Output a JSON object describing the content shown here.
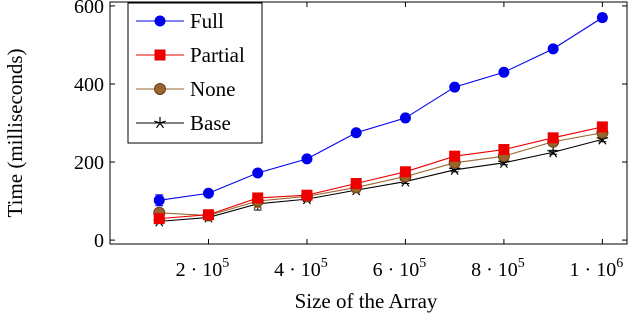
{
  "chart_data": {
    "type": "line",
    "xlabel": "Size of the Array",
    "ylabel": "Time (milliseconds)",
    "xlim": [
      0,
      1050000
    ],
    "ylim": [
      -10,
      610
    ],
    "x_ticks": [
      {
        "value": 200000,
        "base": "2 · 10",
        "exp": "5"
      },
      {
        "value": 400000,
        "base": "4 · 10",
        "exp": "5"
      },
      {
        "value": 600000,
        "base": "6 · 10",
        "exp": "5"
      },
      {
        "value": 800000,
        "base": "8 · 10",
        "exp": "5"
      },
      {
        "value": 1000000,
        "base": "1 · 10",
        "exp": "6"
      }
    ],
    "y_ticks": [
      {
        "value": 0,
        "label": "0"
      },
      {
        "value": 200,
        "label": "200"
      },
      {
        "value": 400,
        "label": "400"
      },
      {
        "value": 600,
        "label": "600"
      }
    ],
    "legend_position": "top-left",
    "x": [
      100000,
      200000,
      300000,
      400000,
      500000,
      600000,
      700000,
      800000,
      900000,
      1000000
    ],
    "series": [
      {
        "name": "Full",
        "color": "#0000ee",
        "marker": "circle",
        "values": [
          102,
          120,
          172,
          208,
          275,
          313,
          392,
          430,
          490,
          570
        ],
        "errors": [
          14,
          7,
          8,
          6,
          6,
          6,
          6,
          6,
          8,
          10
        ]
      },
      {
        "name": "Partial",
        "color": "#ee0000",
        "marker": "square",
        "values": [
          55,
          65,
          108,
          115,
          145,
          175,
          215,
          232,
          262,
          290
        ],
        "errors": [
          6,
          4,
          10,
          5,
          5,
          5,
          5,
          5,
          5,
          6
        ]
      },
      {
        "name": "None",
        "color": "#99652b",
        "marker": "circle-filled-outline",
        "values": [
          70,
          63,
          100,
          112,
          135,
          163,
          198,
          215,
          252,
          275
        ],
        "errors": [
          8,
          4,
          16,
          6,
          5,
          5,
          6,
          6,
          6,
          7
        ]
      },
      {
        "name": "Base",
        "color": "#000000",
        "marker": "star",
        "values": [
          48,
          58,
          93,
          105,
          128,
          150,
          180,
          198,
          225,
          258
        ],
        "errors": [
          5,
          4,
          16,
          6,
          5,
          5,
          5,
          5,
          5,
          6
        ]
      }
    ]
  }
}
